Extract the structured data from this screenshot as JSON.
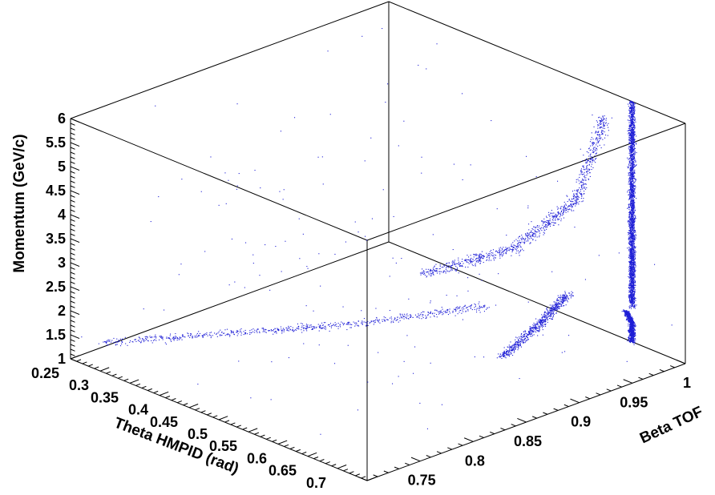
{
  "chart_data": {
    "type": "scatter",
    "projection": "3d",
    "marker_color": "#1f1fd6",
    "xlabel": "Theta HMPID (rad)",
    "ylabel": "Beta TOF",
    "zlabel": "Momentum (GeV/c)",
    "xlim": [
      0.25,
      0.75
    ],
    "ylim": [
      0.7,
      1.0
    ],
    "zlim": [
      1,
      6
    ],
    "x_ticks": [
      "0.25",
      "0.3",
      "0.35",
      "0.4",
      "0.45",
      "0.5",
      "0.55",
      "0.6",
      "0.65",
      "0.7"
    ],
    "y_ticks": [
      "0.75",
      "0.8",
      "0.85",
      "0.9",
      "0.95",
      "1"
    ],
    "z_ticks": [
      "1",
      "1.5",
      "2",
      "2.5",
      "3",
      "3.5",
      "4",
      "4.5",
      "5",
      "5.5",
      "6"
    ],
    "series": [
      {
        "x_range": [
          0.62,
          0.7
        ],
        "y_range": [
          0.97,
          1.0
        ],
        "z_range": [
          1.0,
          1.6
        ],
        "values": [
          [
            0.66,
            1.0,
            1.0
          ],
          [
            0.66,
            1.0,
            1.4
          ],
          [
            0.65,
            1.0,
            1.6
          ]
        ]
      },
      {
        "x_range": [
          0.62,
          0.69
        ],
        "y_range": [
          0.98,
          1.0
        ],
        "z_range": [
          1.8,
          6.0
        ],
        "values": [
          [
            0.66,
            1.0,
            1.8
          ],
          [
            0.66,
            1.0,
            3.0
          ],
          [
            0.66,
            1.0,
            4.5
          ],
          [
            0.66,
            1.0,
            6.0
          ]
        ]
      },
      {
        "x_range": [
          0.6,
          0.66
        ],
        "y_range": [
          0.88,
          0.96
        ],
        "z_range": [
          1.2,
          2.4
        ],
        "values": [
          [
            0.62,
            0.9,
            1.3
          ],
          [
            0.63,
            0.93,
            1.8
          ],
          [
            0.64,
            0.95,
            2.3
          ]
        ]
      },
      {
        "x_range": [
          0.43,
          0.66
        ],
        "y_range": [
          0.9,
          0.98
        ],
        "z_range": [
          2.0,
          5.8
        ],
        "values": [
          [
            0.45,
            0.92,
            2.0
          ],
          [
            0.55,
            0.95,
            2.8
          ],
          [
            0.62,
            0.97,
            4.0
          ],
          [
            0.65,
            0.98,
            5.8
          ]
        ]
      },
      {
        "x_range": [
          0.25,
          0.56
        ],
        "y_range": [
          0.73,
          0.92
        ],
        "z_range": [
          1.0,
          2.0
        ],
        "values": [
          [
            0.25,
            0.73,
            1.1
          ],
          [
            0.35,
            0.8,
            1.25
          ],
          [
            0.45,
            0.86,
            1.45
          ],
          [
            0.56,
            0.92,
            1.9
          ]
        ]
      },
      {
        "x_range": [
          0.25,
          0.75
        ],
        "y_range": [
          0.7,
          1.0
        ],
        "z_range": [
          1.0,
          6.0
        ],
        "values": [
          [
            0.3,
            0.75,
            1.2
          ],
          [
            0.5,
            0.85,
            4.0
          ],
          [
            0.7,
            0.95,
            5.5
          ]
        ]
      }
    ]
  }
}
